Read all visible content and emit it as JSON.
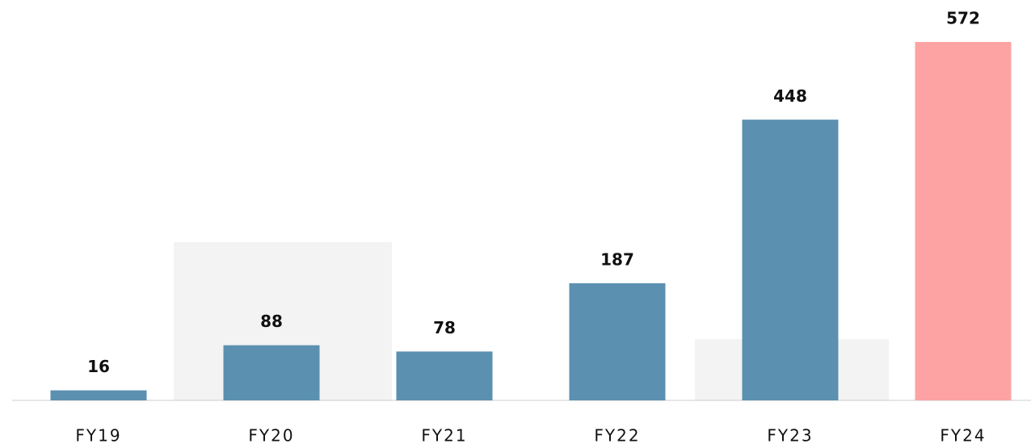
{
  "chart_data": {
    "type": "bar",
    "categories": [
      "FY19",
      "FY20",
      "FY21",
      "FY22",
      "FY23",
      "FY24"
    ],
    "values": [
      16,
      88,
      78,
      187,
      448,
      572
    ],
    "colors": [
      "#5b90b0",
      "#5b90b0",
      "#5b90b0",
      "#5b90b0",
      "#5b90b0",
      "#fda3a3"
    ]
  }
}
